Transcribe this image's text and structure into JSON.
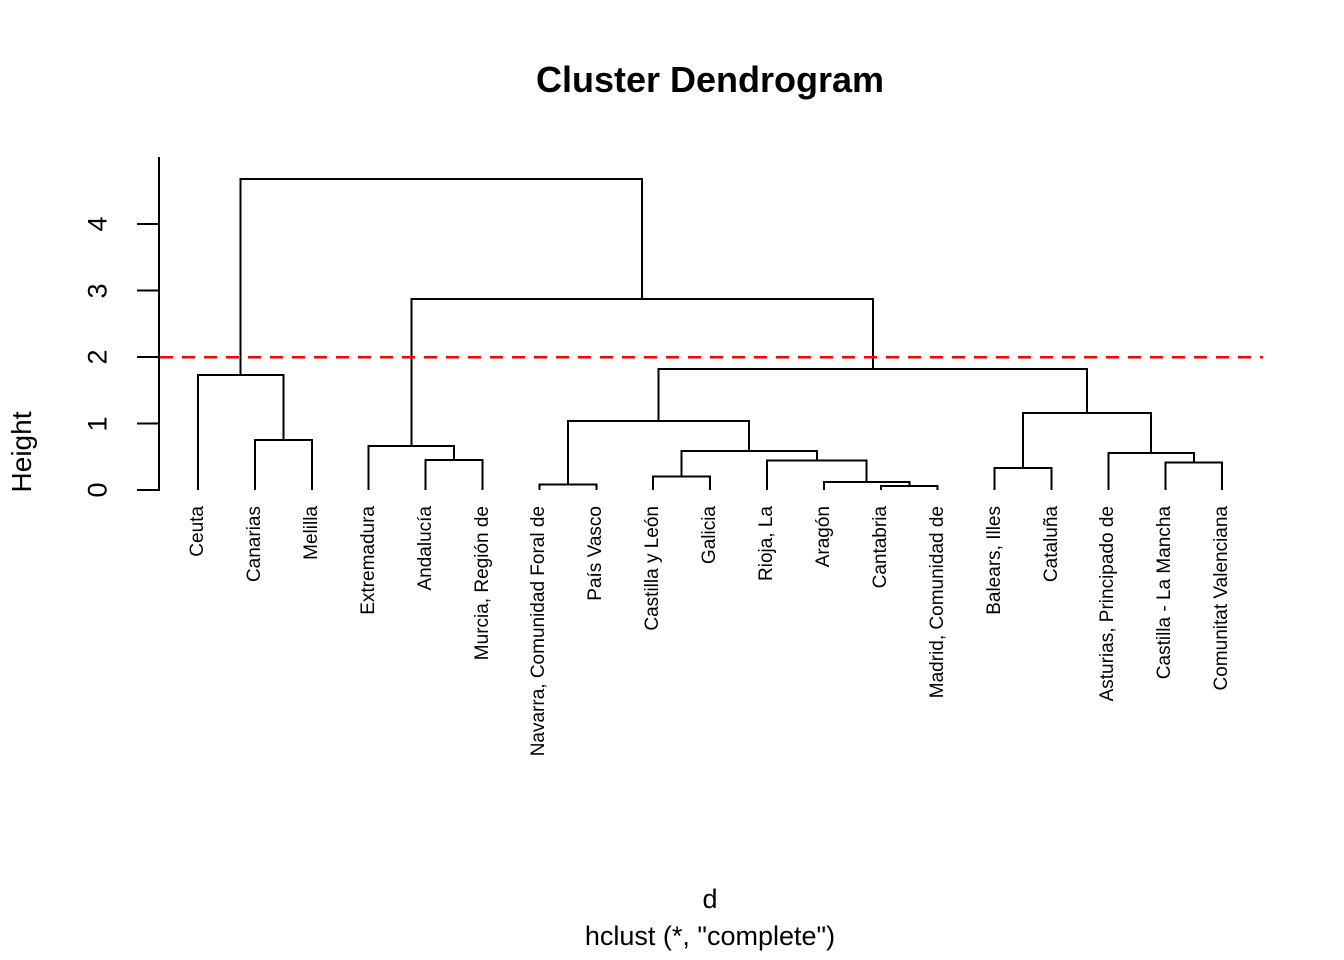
{
  "title": "Cluster Dendrogram",
  "axis": {
    "ylabel": "Height",
    "yticks": [
      "0",
      "1",
      "2",
      "3",
      "4"
    ]
  },
  "caption": {
    "line1": "d",
    "line2": "hclust (*, \"complete\")"
  },
  "colors": {
    "background": "#ffffff",
    "tree_line": "#000000",
    "text": "#000000",
    "cutline": "#ff0000"
  },
  "chart_data": {
    "type": "dendrogram",
    "title": "Cluster Dendrogram",
    "ylabel": "Height",
    "xlabel": "d",
    "subtitle": "hclust (*, \"complete\")",
    "ylim": [
      0,
      5
    ],
    "yticks": [
      0,
      1,
      2,
      3,
      4
    ],
    "cutline": {
      "height": 2,
      "color": "#ff0000",
      "style": "dashed"
    },
    "leaf_order": [
      "Ceuta",
      "Canarias",
      "Melilla",
      "Extremadura",
      "Andalucía",
      "Murcia, Región de",
      "Navarra, Comunidad Foral de",
      "País Vasco",
      "Castilla y León",
      "Galicia",
      "Rioja, La",
      "Aragón",
      "Cantabria",
      "Madrid, Comunidad de",
      "Balears, Illes",
      "Cataluña",
      "Asturias, Principado de",
      "Castilla - La Mancha",
      "Comunitat Valenciana"
    ],
    "tree": {
      "height": 4.68,
      "children": [
        {
          "height": 1.73,
          "children": [
            {
              "leaf": "Ceuta"
            },
            {
              "height": 0.75,
              "children": [
                {
                  "leaf": "Canarias"
                },
                {
                  "leaf": "Melilla"
                }
              ]
            }
          ]
        },
        {
          "height": 2.87,
          "children": [
            {
              "height": 0.66,
              "children": [
                {
                  "leaf": "Extremadura"
                },
                {
                  "height": 0.45,
                  "children": [
                    {
                      "leaf": "Andalucía"
                    },
                    {
                      "leaf": "Murcia, Región de"
                    }
                  ]
                }
              ]
            },
            {
              "height": 1.82,
              "children": [
                {
                  "height": 1.04,
                  "children": [
                    {
                      "height": 0.08,
                      "children": [
                        {
                          "leaf": "Navarra, Comunidad Foral de"
                        },
                        {
                          "leaf": "País Vasco"
                        }
                      ]
                    },
                    {
                      "height": 0.59,
                      "children": [
                        {
                          "height": 0.2,
                          "children": [
                            {
                              "leaf": "Castilla y León"
                            },
                            {
                              "leaf": "Galicia"
                            }
                          ]
                        },
                        {
                          "height": 0.44,
                          "children": [
                            {
                              "leaf": "Rioja, La"
                            },
                            {
                              "height": 0.12,
                              "children": [
                                {
                                  "leaf": "Aragón"
                                },
                                {
                                  "height": 0.06,
                                  "children": [
                                    {
                                      "leaf": "Cantabria"
                                    },
                                    {
                                      "leaf": "Madrid, Comunidad de"
                                    }
                                  ]
                                }
                              ]
                            }
                          ]
                        }
                      ]
                    }
                  ]
                },
                {
                  "height": 1.16,
                  "children": [
                    {
                      "height": 0.33,
                      "children": [
                        {
                          "leaf": "Balears, Illes"
                        },
                        {
                          "leaf": "Cataluña"
                        }
                      ]
                    },
                    {
                      "height": 0.56,
                      "children": [
                        {
                          "leaf": "Asturias, Principado de"
                        },
                        {
                          "height": 0.41,
                          "children": [
                            {
                              "leaf": "Castilla - La Mancha"
                            },
                            {
                              "leaf": "Comunitat Valenciana"
                            }
                          ]
                        }
                      ]
                    }
                  ]
                }
              ]
            }
          ]
        }
      ]
    }
  }
}
